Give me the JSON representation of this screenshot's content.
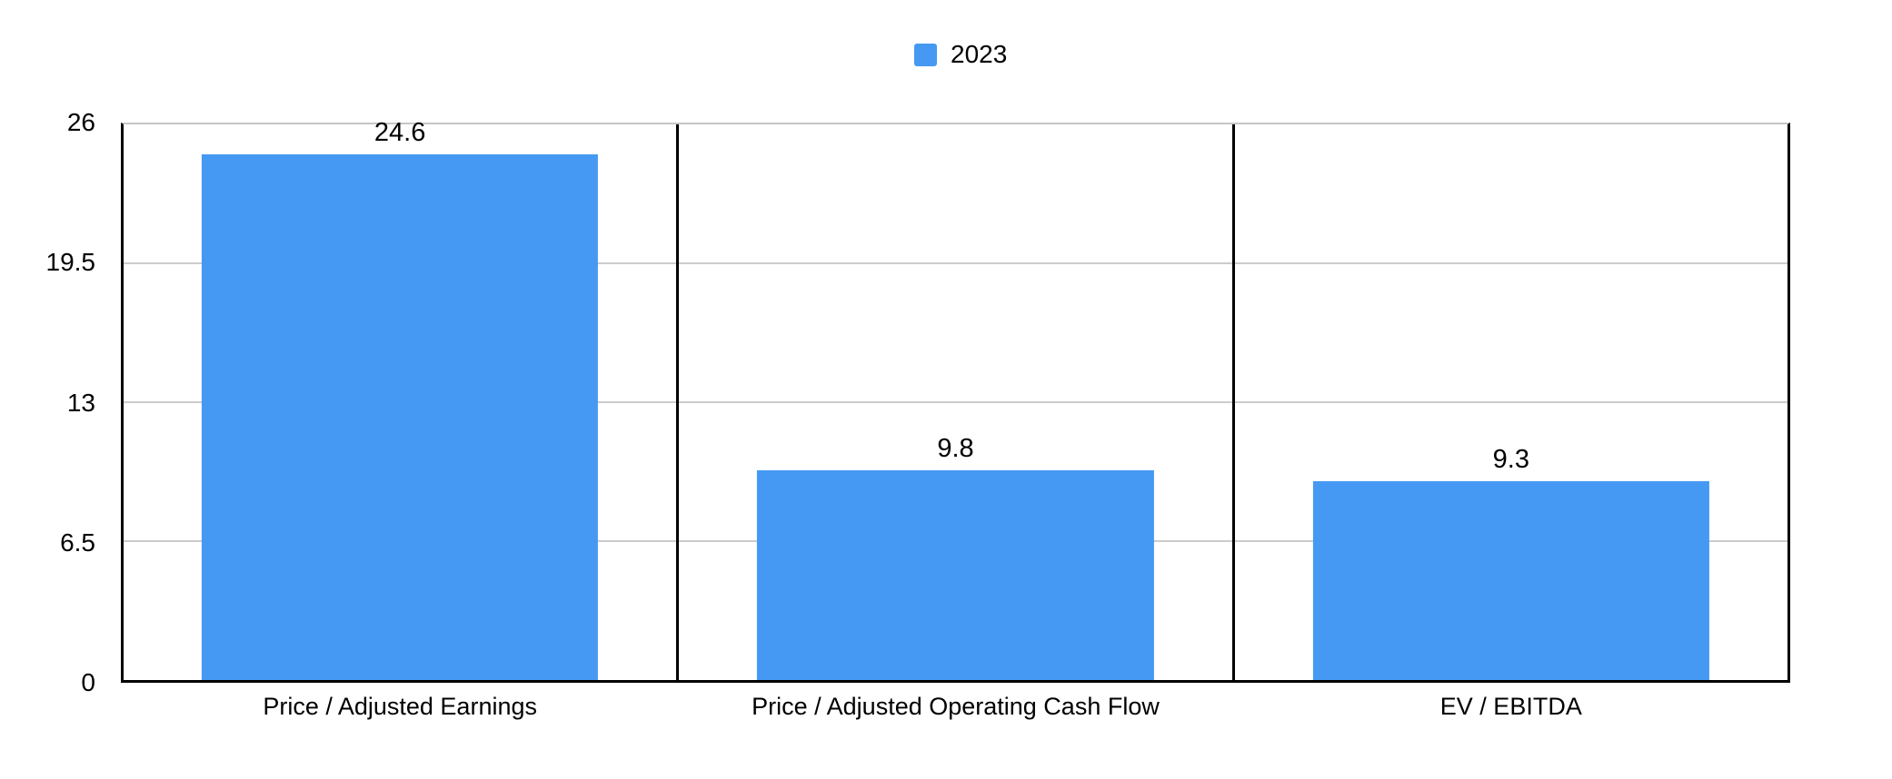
{
  "legend": {
    "position": "top-center",
    "items": [
      {
        "label": "2023",
        "color": "#4599F2"
      }
    ]
  },
  "chart_data": {
    "type": "bar",
    "title": "",
    "xlabel": "",
    "ylabel": "",
    "categories": [
      "Price / Adjusted Earnings",
      "Price / Adjusted Operating Cash Flow",
      "EV / EBITDA"
    ],
    "series": [
      {
        "name": "2023",
        "color": "#4599F2",
        "values": [
          24.6,
          9.8,
          9.3
        ]
      }
    ],
    "data_labels": [
      "24.6",
      "9.8",
      "9.3"
    ],
    "ylim": [
      0,
      26
    ],
    "yticks": [
      0,
      6.5,
      13,
      19.5,
      26
    ],
    "ytick_labels": [
      "0",
      "6.5",
      "13",
      "19.5",
      "26"
    ],
    "grid": true,
    "panel_borders": true,
    "legend_position": "top-center"
  },
  "colors": {
    "bar": "#4599F2",
    "axis": "#000000",
    "gridline": "#cccccc",
    "background": "#ffffff",
    "text": "#000000"
  }
}
